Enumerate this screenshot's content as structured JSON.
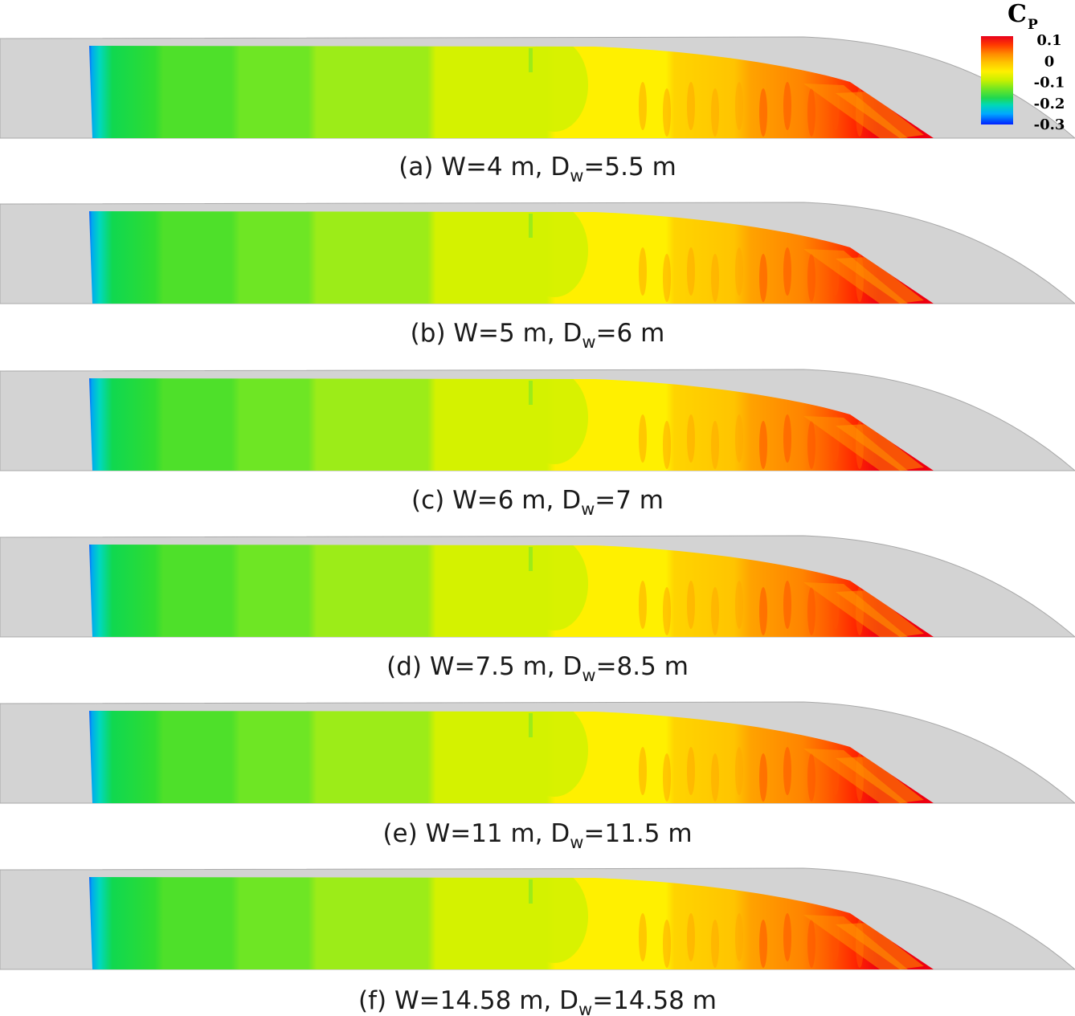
{
  "figure": {
    "colorbar": {
      "title": "C",
      "title_subscript": "P",
      "ticks": [
        "0.1",
        "0",
        "-0.1",
        "-0.2",
        "-0.3"
      ],
      "tick_values": [
        0.1,
        0.0,
        -0.1,
        -0.2,
        -0.3
      ],
      "range": [
        -0.3,
        0.12
      ],
      "colors": [
        "#e8001c",
        "#ff5a00",
        "#ffaa00",
        "#ffe400",
        "#d6f000",
        "#8ee81e",
        "#3ad83c",
        "#00d8b0",
        "#00a8ff",
        "#0030ff"
      ]
    },
    "panels": [
      {
        "letter": "(a)",
        "w_text": "W=4 m,",
        "d_main": "D",
        "d_sub": "w",
        "d_value": "=5.5 m"
      },
      {
        "letter": "(b)",
        "w_text": "W=5 m,",
        "d_main": "D",
        "d_sub": "w",
        "d_value": "=6 m"
      },
      {
        "letter": "(c)",
        "w_text": "W=6 m,",
        "d_main": "D",
        "d_sub": "w",
        "d_value": "=7 m"
      },
      {
        "letter": "(d)",
        "w_text": "W=7.5 m,",
        "d_main": "D",
        "d_sub": "w",
        "d_value": "=8.5 m"
      },
      {
        "letter": "(e)",
        "w_text": "W=11 m,",
        "d_main": "D",
        "d_sub": "w",
        "d_value": "=11.5 m"
      },
      {
        "letter": "(f)",
        "w_text": "W=14.58 m,",
        "d_main": "D",
        "d_sub": "w",
        "d_value": "=14.58 m"
      }
    ],
    "colors": {
      "hull_gray": "#d3d3d3",
      "hull_edge": "#a8a8a8"
    }
  }
}
